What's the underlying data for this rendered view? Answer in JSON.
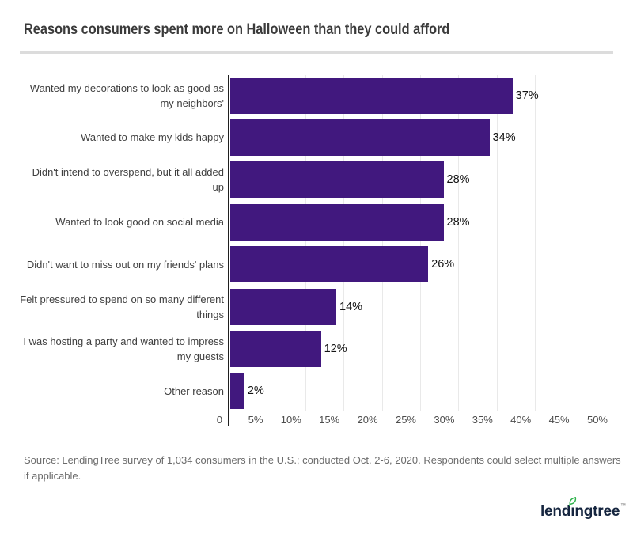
{
  "title": "Reasons consumers spent more on Halloween than they could afford",
  "source_lines": [
    "Source: LendingTree survey of 1,034 consumers in the U.S.; conducted Oct. 2-6, 2020. Respondents could select multiple answers",
    "if applicable."
  ],
  "logo": {
    "text": "lendingtree",
    "trademark": "™",
    "text_color": "#15253f",
    "leaf_color": "#2eb34b"
  },
  "chart_data": {
    "type": "bar",
    "orientation": "horizontal",
    "title": "Reasons consumers spent more on Halloween than they could afford",
    "xlabel": "",
    "ylabel": "",
    "xlim": [
      0,
      50
    ],
    "grid": "vertical",
    "legend": "none",
    "bar_color": "#41187e",
    "axis_color": "#1f1f1f",
    "gridline_color": "#e9e9e9",
    "categories": [
      "Wanted my decorations to look as good as my neighbors'",
      "Wanted to make my kids happy",
      "Didn't intend to overspend, but it all added up",
      "Wanted to look good on social media",
      "Didn't want to miss out on my friends' plans",
      "Felt pressured to spend on so many different things",
      "I was hosting a party and wanted to impress my guests",
      "Other reason"
    ],
    "category_lines": [
      [
        "Wanted my decorations to look as good as",
        "my neighbors'"
      ],
      [
        "Wanted to make my kids happy"
      ],
      [
        "Didn't intend to overspend, but it all added",
        "up"
      ],
      [
        "Wanted to look good on social media"
      ],
      [
        "Didn't want to miss out on my friends' plans"
      ],
      [
        "Felt pressured to spend on so many different",
        "things"
      ],
      [
        "I was hosting a party and wanted to impress",
        "my guests"
      ],
      [
        "Other reason"
      ]
    ],
    "values": [
      37,
      34,
      28,
      28,
      26,
      14,
      12,
      2
    ],
    "value_labels": [
      "37%",
      "34%",
      "28%",
      "28%",
      "26%",
      "14%",
      "12%",
      "2%"
    ],
    "x_tick_labels": [
      "0",
      "5%",
      "10%",
      "15%",
      "20%",
      "25%",
      "30%",
      "35%",
      "40%",
      "45%",
      "50%"
    ]
  }
}
